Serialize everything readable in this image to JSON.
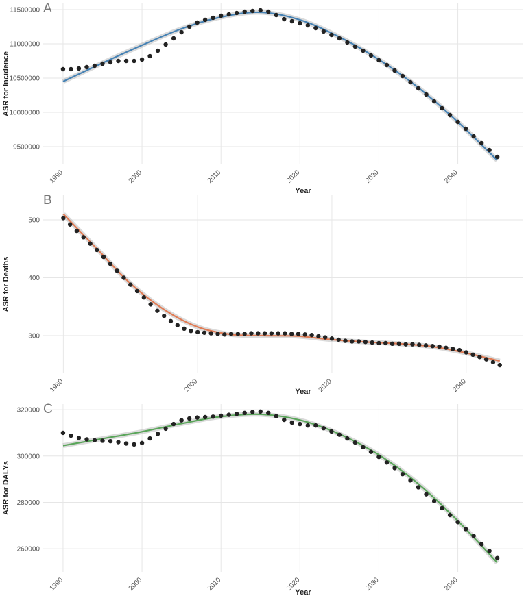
{
  "chart_data": [
    {
      "type": "scatter",
      "tag": "A",
      "ylabel": "ASR for Incidence",
      "xlabel": "Year",
      "xlim": [
        1987.4,
        2048.2
      ],
      "ylim": [
        9240000,
        11590000
      ],
      "xticks": [
        1990,
        2000,
        2010,
        2020,
        2030,
        2040
      ],
      "yticks": [
        9500000,
        10000000,
        10500000,
        11000000,
        11500000
      ],
      "grid": true,
      "points": {
        "color": "#222222",
        "x": [
          1990,
          1991,
          1992,
          1993,
          1994,
          1995,
          1996,
          1997,
          1998,
          1999,
          2000,
          2001,
          2002,
          2003,
          2004,
          2005,
          2006,
          2007,
          2008,
          2009,
          2010,
          2011,
          2012,
          2013,
          2014,
          2015,
          2016,
          2017,
          2018,
          2019,
          2020,
          2021,
          2022,
          2023,
          2024,
          2025,
          2026,
          2027,
          2028,
          2029,
          2030,
          2031,
          2032,
          2033,
          2034,
          2035,
          2036,
          2037,
          2038,
          2039,
          2040,
          2041,
          2042,
          2043,
          2044,
          2045
        ],
        "values": [
          10630000,
          10630000,
          10640000,
          10660000,
          10680000,
          10710000,
          10730000,
          10750000,
          10750000,
          10750000,
          10770000,
          10820000,
          10900000,
          10990000,
          11080000,
          11170000,
          11250000,
          11310000,
          11350000,
          11380000,
          11410000,
          11430000,
          11450000,
          11470000,
          11480000,
          11490000,
          11470000,
          11420000,
          11360000,
          11330000,
          11300000,
          11270000,
          11230000,
          11180000,
          11130000,
          11080000,
          11020000,
          10960000,
          10900000,
          10830000,
          10760000,
          10690000,
          10610000,
          10530000,
          10440000,
          10350000,
          10260000,
          10160000,
          10060000,
          9960000,
          9860000,
          9760000,
          9650000,
          9550000,
          9450000,
          9350000
        ]
      },
      "fit": {
        "color": "#4682b4",
        "x": [
          1990,
          1995,
          2000,
          2005,
          2010,
          2015,
          2020,
          2025,
          2030,
          2035,
          2040,
          2045
        ],
        "values": [
          10450000,
          10720000,
          10980000,
          11220000,
          11390000,
          11460000,
          11350000,
          11100000,
          10770000,
          10360000,
          9860000,
          9300000
        ]
      }
    },
    {
      "type": "scatter",
      "tag": "B",
      "ylabel": "ASR for Deaths",
      "xlabel": "Year",
      "xlim": [
        1976.9,
        2048.4
      ],
      "ylim": [
        234.9,
        542.6
      ],
      "xticks": [
        1980,
        2000,
        2020,
        2040
      ],
      "yticks": [
        300,
        400,
        500
      ],
      "grid": true,
      "points": {
        "color": "#222222",
        "x": [
          1980,
          1981,
          1982,
          1983,
          1984,
          1985,
          1986,
          1987,
          1988,
          1989,
          1990,
          1991,
          1992,
          1993,
          1994,
          1995,
          1996,
          1997,
          1998,
          1999,
          2000,
          2001,
          2002,
          2003,
          2004,
          2005,
          2006,
          2007,
          2008,
          2009,
          2010,
          2011,
          2012,
          2013,
          2014,
          2015,
          2016,
          2017,
          2018,
          2019,
          2020,
          2021,
          2022,
          2023,
          2024,
          2025,
          2026,
          2027,
          2028,
          2029,
          2030,
          2031,
          2032,
          2033,
          2034,
          2035,
          2036,
          2037,
          2038,
          2039,
          2040,
          2041,
          2042,
          2043,
          2044,
          2045
        ],
        "values": [
          503,
          492,
          481,
          470,
          459,
          448,
          436,
          424,
          412,
          400,
          388,
          377,
          366,
          354,
          343,
          334,
          325,
          318,
          312,
          308,
          306,
          305,
          304,
          303,
          302,
          303,
          303,
          303,
          304,
          304,
          304,
          304,
          304,
          304,
          303,
          303,
          302,
          301,
          299,
          297,
          295,
          293,
          291,
          290,
          290,
          289,
          288,
          287,
          287,
          286,
          286,
          285,
          285,
          284,
          283,
          282,
          281,
          279,
          277,
          275,
          271,
          267,
          263,
          259,
          254,
          249
        ]
      },
      "fit": {
        "color": "#e07b54",
        "x": [
          1980,
          1985,
          1990,
          1995,
          2000,
          2005,
          2010,
          2015,
          2020,
          2025,
          2030,
          2035,
          2040,
          2045
        ],
        "values": [
          510,
          450,
          390,
          345,
          315,
          302,
          300,
          299,
          293,
          289,
          286,
          281,
          270,
          256
        ]
      }
    },
    {
      "type": "scatter",
      "tag": "C",
      "ylabel": "ASR for DALYs",
      "xlabel": "Year",
      "xlim": [
        1987.4,
        2048.2
      ],
      "ylim": [
        250000,
        322400
      ],
      "xticks": [
        1990,
        2000,
        2010,
        2020,
        2030,
        2040
      ],
      "yticks": [
        260000,
        280000,
        300000,
        320000
      ],
      "grid": true,
      "points": {
        "color": "#222222",
        "x": [
          1990,
          1991,
          1992,
          1993,
          1994,
          1995,
          1996,
          1997,
          1998,
          1999,
          2000,
          2001,
          2002,
          2003,
          2004,
          2005,
          2006,
          2007,
          2008,
          2009,
          2010,
          2011,
          2012,
          2013,
          2014,
          2015,
          2016,
          2017,
          2018,
          2019,
          2020,
          2021,
          2022,
          2023,
          2024,
          2025,
          2026,
          2027,
          2028,
          2029,
          2030,
          2031,
          2032,
          2033,
          2034,
          2035,
          2036,
          2037,
          2038,
          2039,
          2040,
          2041,
          2042,
          2043,
          2044,
          2045
        ],
        "values": [
          310000,
          308800,
          307800,
          307200,
          306800,
          306600,
          306400,
          306000,
          305400,
          305000,
          305600,
          307600,
          309600,
          311800,
          313800,
          315400,
          316200,
          316600,
          316800,
          317000,
          317400,
          317800,
          318200,
          318600,
          319000,
          319200,
          318600,
          317200,
          315600,
          314400,
          313800,
          313200,
          313200,
          312000,
          310600,
          309200,
          307600,
          305800,
          303800,
          301800,
          299600,
          297200,
          294800,
          292200,
          289500,
          286500,
          283500,
          280500,
          277500,
          274500,
          271500,
          268500,
          265500,
          262000,
          259000,
          256000
        ]
      },
      "fit": {
        "color": "#5aa55a",
        "x": [
          1990,
          1995,
          2000,
          2005,
          2010,
          2015,
          2020,
          2025,
          2030,
          2035,
          2040,
          2045
        ],
        "values": [
          304500,
          307500,
          310500,
          314000,
          317000,
          318000,
          315500,
          309500,
          300500,
          288000,
          272000,
          254000
        ]
      }
    }
  ]
}
